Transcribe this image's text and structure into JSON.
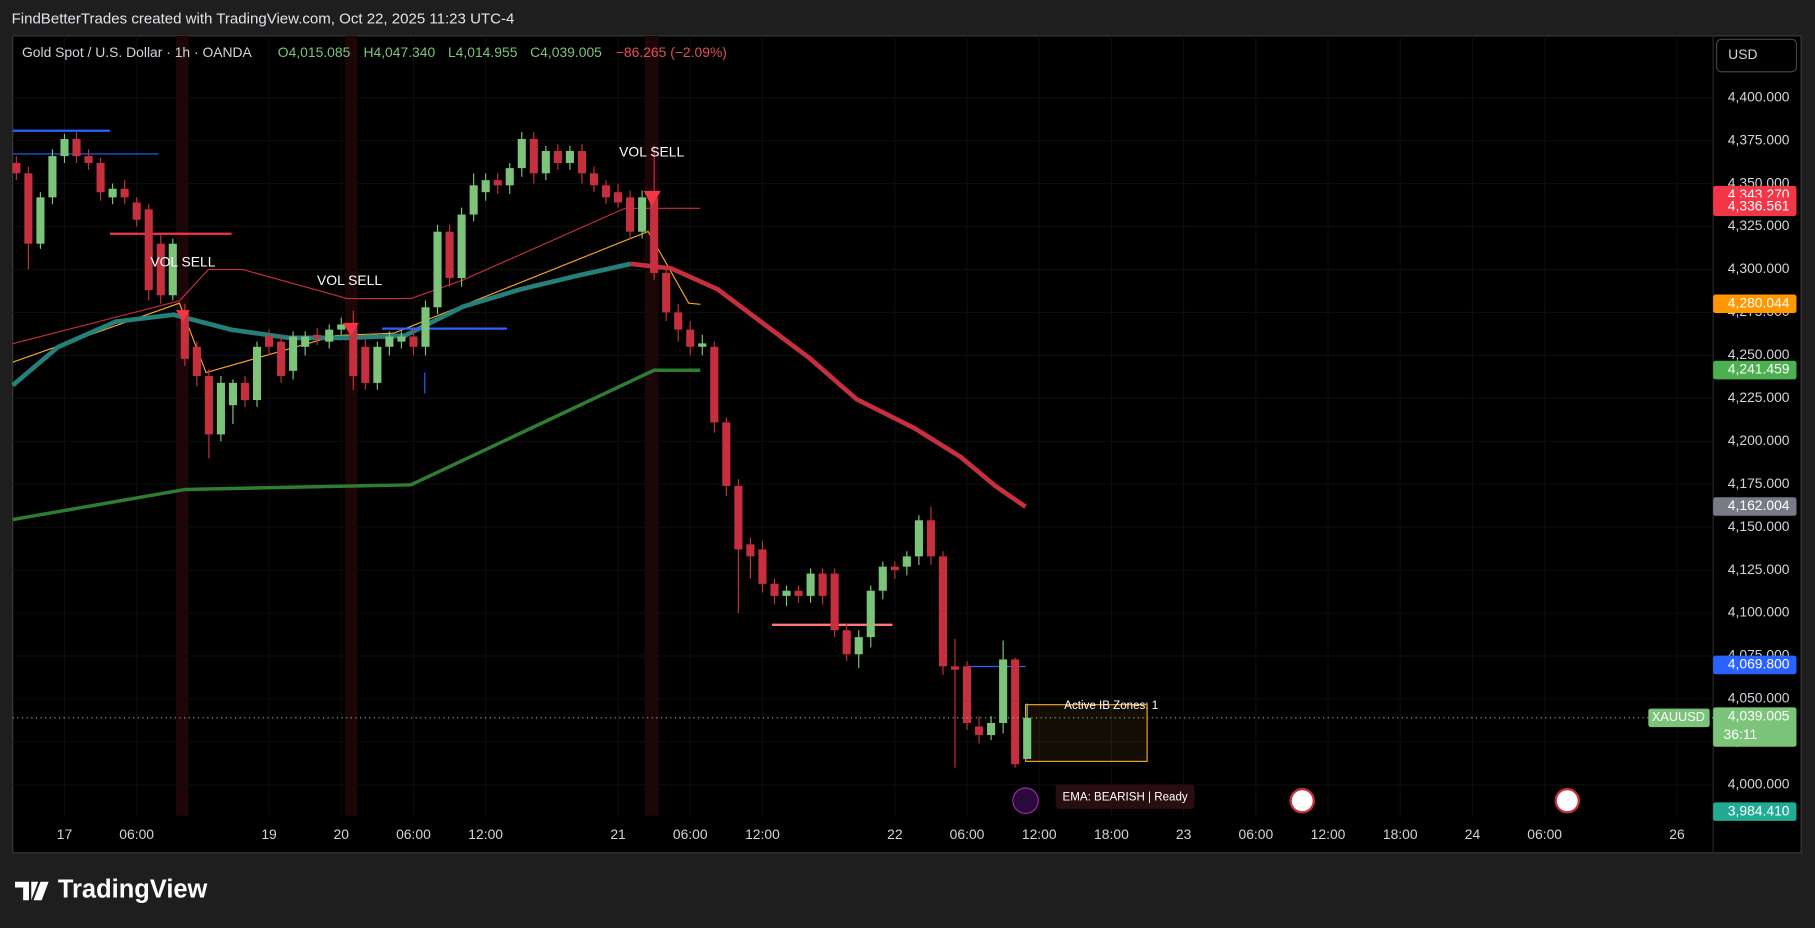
{
  "header": {
    "credit": "FindBetterTrades created with TradingView.com, Oct 22, 2025 11:23 UTC-4",
    "logo": "TradingView"
  },
  "chart_data": {
    "type": "candlestick",
    "title": "Gold Spot / U.S. Dollar · 1h · OANDA",
    "legend_values": [
      "O4,015.085",
      "H4,047.340",
      "L4,014.955",
      "C4,039.005",
      "−86.265 (−2.09%)"
    ],
    "currency": "USD",
    "up_color": "#7cc47a",
    "down_color": "#c62f3e",
    "series": {
      "open": [
        4362,
        4356,
        4315,
        4342,
        4366,
        4376,
        4366,
        4362,
        4342,
        4347,
        4339,
        4335,
        4315,
        4285,
        4275,
        4255,
        4238,
        4204,
        4221,
        4234,
        4224,
        4261,
        4258,
        4241,
        4255,
        4262,
        4258,
        4265,
        4268,
        4255,
        4234,
        4255,
        4258,
        4261,
        4255,
        4278,
        4322,
        4295,
        4332,
        4345,
        4352,
        4349,
        4359,
        4376,
        4356,
        4369,
        4362,
        4369,
        4356,
        4349,
        4345,
        4342,
        4322,
        4342,
        4298,
        4275,
        4265,
        4255,
        4255,
        4211,
        4174,
        4140,
        4137,
        4117,
        4110,
        4113,
        4110,
        4123,
        4123,
        4090,
        4076,
        4086,
        4113,
        4127,
        4127,
        4133,
        4154,
        4133,
        4069,
        4069,
        4034,
        4029,
        4036,
        4073,
        4015.085
      ],
      "high": [
        4366,
        4360,
        4345,
        4370,
        4379,
        4380,
        4370,
        4365,
        4350,
        4352,
        4342,
        4338,
        4320,
        4318,
        4280,
        4258,
        4242,
        4238,
        4236,
        4238,
        4258,
        4265,
        4262,
        4264,
        4264,
        4266,
        4268,
        4272,
        4276,
        4260,
        4258,
        4264,
        4264,
        4266,
        4282,
        4326,
        4326,
        4336,
        4356,
        4356,
        4356,
        4362,
        4380,
        4380,
        4372,
        4373,
        4372,
        4373,
        4360,
        4352,
        4350,
        4346,
        4346,
        4372,
        4302,
        4280,
        4270,
        4262,
        4258,
        4214,
        4178,
        4144,
        4142,
        4120,
        4116,
        4116,
        4126,
        4126,
        4126,
        4094,
        4090,
        4116,
        4130,
        4130,
        4136,
        4157,
        4162,
        4136,
        4085,
        4072,
        4040,
        4040,
        4084,
        4074,
        4047.34
      ],
      "low": [
        4352,
        4300,
        4312,
        4338,
        4362,
        4362,
        4358,
        4340,
        4338,
        4338,
        4325,
        4282,
        4280,
        4282,
        4244,
        4232,
        4190,
        4200,
        4210,
        4220,
        4220,
        4250,
        4234,
        4236,
        4250,
        4256,
        4254,
        4262,
        4230,
        4230,
        4230,
        4250,
        4254,
        4250,
        4250,
        4274,
        4290,
        4290,
        4328,
        4340,
        4344,
        4344,
        4354,
        4350,
        4352,
        4358,
        4358,
        4350,
        4345,
        4338,
        4336,
        4318,
        4318,
        4294,
        4270,
        4258,
        4250,
        4250,
        4205,
        4168,
        4100,
        4120,
        4112,
        4105,
        4104,
        4106,
        4106,
        4105,
        4086,
        4072,
        4068,
        4080,
        4108,
        4120,
        4122,
        4128,
        4128,
        4064,
        4010,
        4032,
        4024,
        4026,
        4030,
        4010,
        4014.955
      ],
      "close": [
        4356,
        4315,
        4342,
        4366,
        4376,
        4366,
        4362,
        4345,
        4347,
        4342,
        4329,
        4288,
        4285,
        4315,
        4248,
        4238,
        4204,
        4234,
        4234,
        4224,
        4255,
        4255,
        4238,
        4261,
        4261,
        4260,
        4265,
        4268,
        4238,
        4234,
        4255,
        4261,
        4261,
        4255,
        4278,
        4322,
        4295,
        4332,
        4349,
        4352,
        4349,
        4359,
        4376,
        4356,
        4369,
        4362,
        4369,
        4356,
        4349,
        4342,
        4339,
        4322,
        4342,
        4298,
        4275,
        4265,
        4255,
        4257,
        4211,
        4174,
        4137,
        4133,
        4117,
        4110,
        4113,
        4110,
        4123,
        4110,
        4090,
        4076,
        4086,
        4113,
        4127,
        4125,
        4133,
        4154,
        4133,
        4069,
        4067,
        4036,
        4029,
        4036,
        4073,
        4012,
        4039.005
      ]
    },
    "ylim": [
      3982,
      4436
    ],
    "yticks": [
      {
        "value": 4000,
        "label": "4,000.000"
      },
      {
        "value": 4025,
        "label": "4,025.000"
      },
      {
        "value": 4050,
        "label": "4,050.000"
      },
      {
        "value": 4075,
        "label": "4,075.000"
      },
      {
        "value": 4100,
        "label": "4,100.000"
      },
      {
        "value": 4125,
        "label": "4,125.000"
      },
      {
        "value": 4150,
        "label": "4,150.000"
      },
      {
        "value": 4175,
        "label": "4,175.000"
      },
      {
        "value": 4200,
        "label": "4,200.000"
      },
      {
        "value": 4225,
        "label": "4,225.000"
      },
      {
        "value": 4250,
        "label": "4,250.000"
      },
      {
        "value": 4275,
        "label": "4,275.000"
      },
      {
        "value": 4300,
        "label": "4,300.000"
      },
      {
        "value": 4325,
        "label": "4,325.000"
      },
      {
        "value": 4350,
        "label": "4,350.000"
      },
      {
        "value": 4375,
        "label": "4,375.000"
      },
      {
        "value": 4400,
        "label": "4,400.000"
      }
    ],
    "xlim": [
      -0.3,
      141
    ],
    "xticks": [
      {
        "value": 4,
        "label": "17"
      },
      {
        "value": 10,
        "label": "06:00"
      },
      {
        "value": 21,
        "label": "19"
      },
      {
        "value": 27,
        "label": "20"
      },
      {
        "value": 33,
        "label": "06:00"
      },
      {
        "value": 39,
        "label": "12:00"
      },
      {
        "value": 50,
        "label": "21"
      },
      {
        "value": 56,
        "label": "06:00"
      },
      {
        "value": 62,
        "label": "12:00"
      },
      {
        "value": 73,
        "label": "22"
      },
      {
        "value": 79,
        "label": "06:00"
      },
      {
        "value": 85,
        "label": "12:00"
      },
      {
        "value": 91,
        "label": "18:00"
      },
      {
        "value": 97,
        "label": "23"
      },
      {
        "value": 103,
        "label": "06:00"
      },
      {
        "value": 109,
        "label": "12:00"
      },
      {
        "value": 115,
        "label": "18:00"
      },
      {
        "value": 121,
        "label": "24"
      },
      {
        "value": 127,
        "label": "06:00"
      },
      {
        "value": 138,
        "label": "26"
      }
    ],
    "price_labels": [
      {
        "value": 4343.27,
        "label": "4,343.270",
        "color": "#f23645"
      },
      {
        "value": 4336.561,
        "label": "4,336.561",
        "color": "#f23645"
      },
      {
        "value": 4280.044,
        "label": "4,280.044",
        "color": "#ff9800"
      },
      {
        "value": 4241.459,
        "label": "4,241.459",
        "color": "#4caf50"
      },
      {
        "value": 4162.004,
        "label": "4,162.004",
        "color": "#787b86"
      },
      {
        "value": 4069.8,
        "label": "4,069.800",
        "color": "#2962ff"
      },
      {
        "value": 3984.41,
        "label": "3,984.410",
        "color": "#22ab94"
      }
    ],
    "last_price_label": {
      "value": 4039.005,
      "label": "4,039.005",
      "color": "#7cc47a"
    },
    "symbol_label": "XAUUSD",
    "countdown": "36:11",
    "annotations": [
      "VOL SELL",
      "VOL SELL",
      "VOL SELL",
      "Active IB Zones: 1",
      "EMA: BEARISH | Ready"
    ]
  }
}
